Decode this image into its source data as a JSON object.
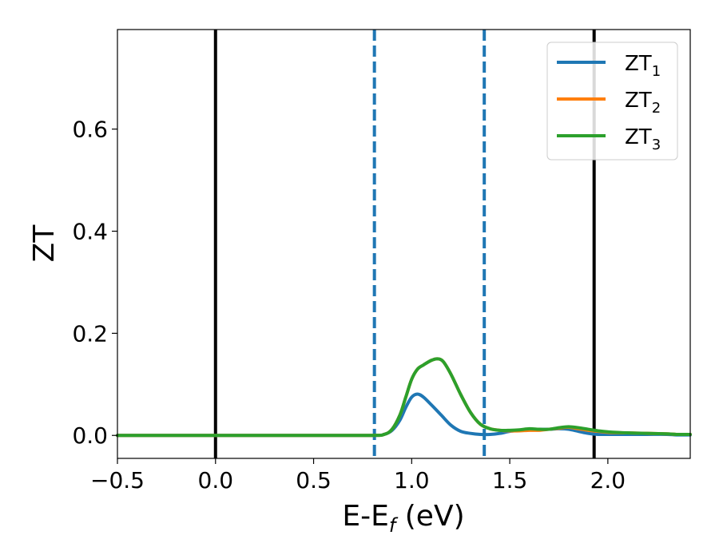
{
  "chart_data": {
    "type": "line",
    "xlabel": {
      "main": "E-E",
      "sub": "f",
      "unit": " (eV)"
    },
    "ylabel": "ZT",
    "xlim": [
      -0.5,
      2.42
    ],
    "ylim": [
      -0.045,
      0.795
    ],
    "xticks": [
      -0.5,
      0.0,
      0.5,
      1.0,
      1.5,
      2.0
    ],
    "xtick_labels": [
      "−0.5",
      "0.0",
      "0.5",
      "1.0",
      "1.5",
      "2.0"
    ],
    "yticks": [
      0.0,
      0.2,
      0.4,
      0.6
    ],
    "ytick_labels": [
      "0.0",
      "0.2",
      "0.4",
      "0.6"
    ],
    "grid": false,
    "legend_position": "top-right",
    "vlines_solid": [
      0.0,
      1.93
    ],
    "vlines_dashed": [
      0.81,
      1.37
    ],
    "vline_colors": {
      "solid": "#000000",
      "dashed": "#1f77b4"
    },
    "series": [
      {
        "name": "ZT",
        "name_sub": "1",
        "color": "#1f77b4",
        "x": [
          -0.5,
          0.0,
          0.5,
          0.8,
          0.86,
          0.9,
          0.94,
          0.97,
          1.0,
          1.03,
          1.06,
          1.1,
          1.15,
          1.2,
          1.25,
          1.3,
          1.35,
          1.4,
          1.45,
          1.5,
          1.55,
          1.6,
          1.65,
          1.7,
          1.75,
          1.8,
          1.85,
          1.9,
          1.95,
          2.0,
          2.1,
          2.2,
          2.3,
          2.35,
          2.42
        ],
        "y": [
          0.0,
          0.0,
          0.0,
          0.0,
          0.002,
          0.01,
          0.03,
          0.055,
          0.075,
          0.081,
          0.075,
          0.06,
          0.04,
          0.02,
          0.008,
          0.004,
          0.002,
          0.002,
          0.004,
          0.008,
          0.01,
          0.012,
          0.012,
          0.012,
          0.013,
          0.012,
          0.008,
          0.004,
          0.002,
          0.002,
          0.002,
          0.002,
          0.002,
          0.001,
          0.001
        ]
      },
      {
        "name": "ZT",
        "name_sub": "2",
        "color": "#ff7f0e",
        "x": [
          -0.5,
          0.0,
          0.5,
          0.8,
          0.86,
          0.9,
          0.94,
          0.97,
          1.0,
          1.03,
          1.06,
          1.1,
          1.13,
          1.16,
          1.2,
          1.25,
          1.3,
          1.35,
          1.4,
          1.45,
          1.5,
          1.55,
          1.6,
          1.65,
          1.7,
          1.75,
          1.8,
          1.85,
          1.9,
          1.95,
          2.0,
          2.1,
          2.2,
          2.3,
          2.35,
          2.42
        ],
        "y": [
          0.0,
          0.0,
          0.0,
          0.0,
          0.002,
          0.012,
          0.04,
          0.075,
          0.11,
          0.13,
          0.138,
          0.147,
          0.15,
          0.145,
          0.12,
          0.08,
          0.045,
          0.022,
          0.013,
          0.01,
          0.009,
          0.009,
          0.01,
          0.01,
          0.012,
          0.014,
          0.016,
          0.013,
          0.01,
          0.008,
          0.006,
          0.005,
          0.004,
          0.003,
          0.002,
          0.002
        ]
      },
      {
        "name": "ZT",
        "name_sub": "3",
        "color": "#2ca02c",
        "x": [
          -0.5,
          0.0,
          0.5,
          0.8,
          0.86,
          0.9,
          0.94,
          0.97,
          1.0,
          1.03,
          1.06,
          1.1,
          1.13,
          1.16,
          1.2,
          1.25,
          1.3,
          1.35,
          1.4,
          1.45,
          1.5,
          1.55,
          1.6,
          1.65,
          1.7,
          1.75,
          1.8,
          1.85,
          1.9,
          1.95,
          2.0,
          2.1,
          2.2,
          2.3,
          2.35,
          2.42
        ],
        "y": [
          0.0,
          0.0,
          0.0,
          0.0,
          0.002,
          0.012,
          0.04,
          0.075,
          0.11,
          0.13,
          0.138,
          0.147,
          0.15,
          0.145,
          0.12,
          0.08,
          0.045,
          0.022,
          0.013,
          0.01,
          0.01,
          0.011,
          0.013,
          0.012,
          0.012,
          0.015,
          0.017,
          0.015,
          0.012,
          0.009,
          0.007,
          0.005,
          0.004,
          0.003,
          0.002,
          0.002
        ]
      }
    ]
  }
}
